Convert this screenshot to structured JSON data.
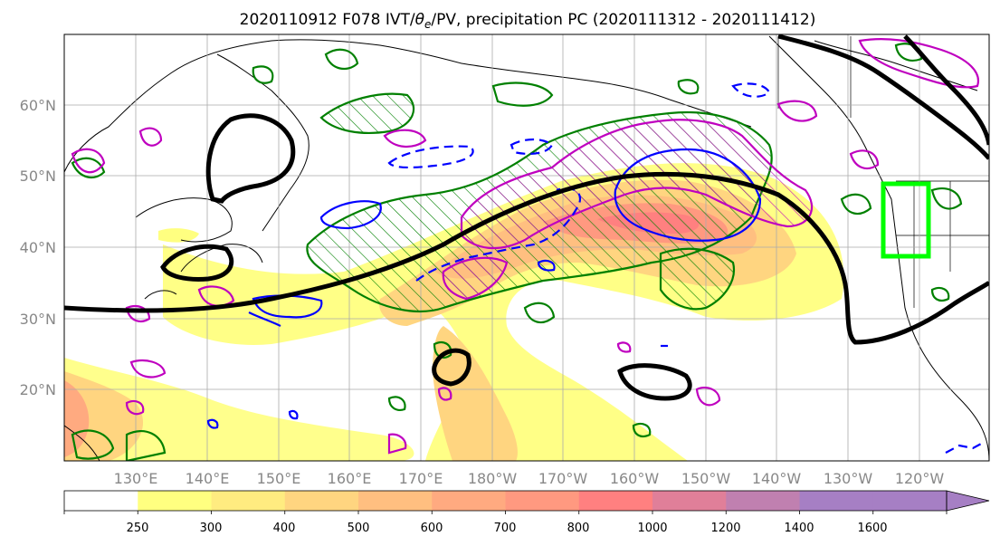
{
  "title": {
    "prefix": "2020110912 F078 IVT/",
    "theta": "θ",
    "theta_sub": "e",
    "suffix": "/PV, precipitation PC (2020111312 - 2020111412)"
  },
  "map": {
    "lat_labels": [
      "60°N",
      "50°N",
      "40°N",
      "30°N",
      "20°N"
    ],
    "lon_labels": [
      "130°E",
      "140°E",
      "150°E",
      "160°E",
      "170°E",
      "180°W",
      "170°W",
      "160°W",
      "150°W",
      "140°W",
      "130°W",
      "120°W"
    ],
    "domain_box_color": "#00ff00",
    "contour_colors": {
      "pv": "#000000",
      "positive_pc": "#008000",
      "theta_e": "#0000ff",
      "negative_pc": "#bf00bf"
    }
  },
  "colorbar": {
    "unit_levels": [
      "250",
      "300",
      "400",
      "500",
      "600",
      "700",
      "800",
      "1000",
      "1200",
      "1400",
      "1600"
    ],
    "colors": [
      "#ffffff",
      "#ffff80",
      "#ffec80",
      "#ffd580",
      "#ffbf80",
      "#ffaa80",
      "#ff9980",
      "#ff8080",
      "#e07f99",
      "#c080b0",
      "#a67fc4"
    ]
  }
}
